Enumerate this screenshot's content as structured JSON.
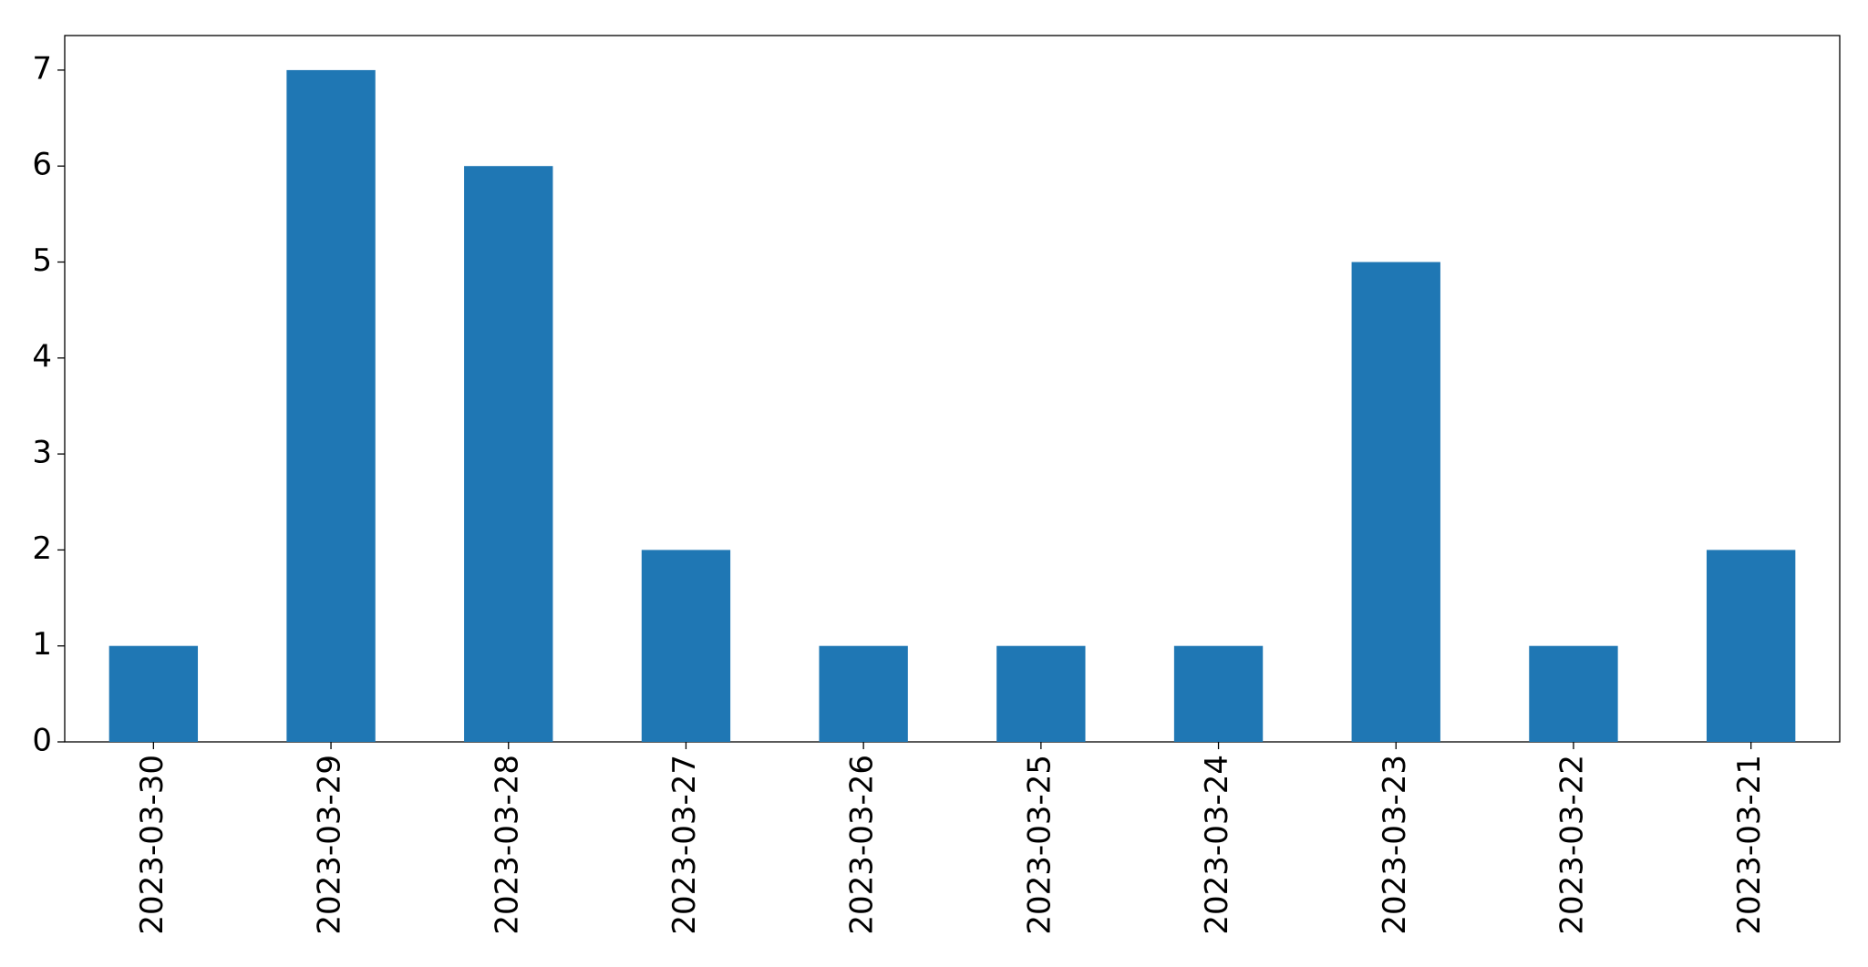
{
  "chart_data": {
    "type": "bar",
    "categories": [
      "2023-03-30",
      "2023-03-29",
      "2023-03-28",
      "2023-03-27",
      "2023-03-26",
      "2023-03-25",
      "2023-03-24",
      "2023-03-23",
      "2023-03-22",
      "2023-03-21"
    ],
    "values": [
      1,
      7,
      6,
      2,
      1,
      1,
      1,
      5,
      1,
      2
    ],
    "color": "#1f77b4",
    "ylim": [
      0,
      7.36
    ],
    "yticks": [
      0,
      1,
      2,
      3,
      4,
      5,
      6,
      7
    ],
    "grid": false
  }
}
